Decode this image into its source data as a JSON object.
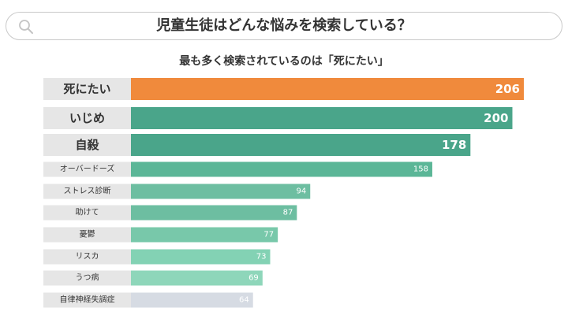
{
  "search": {
    "query": "児童生徒はどんな悩みを検索している？",
    "icon": "search-icon"
  },
  "chart_data": {
    "type": "bar",
    "orientation": "horizontal",
    "title": "最も多く検索されているのは「死にたい」",
    "xlabel": "",
    "ylabel": "",
    "categories": [
      "死にたい",
      "いじめ",
      "自殺",
      "オーバードーズ",
      "ストレス診断",
      "助けて",
      "憂鬱",
      "リスカ",
      "うつ病",
      "自律神経失調症"
    ],
    "values": [
      206,
      200,
      178,
      158,
      94,
      87,
      77,
      73,
      69,
      64
    ],
    "value_labels": [
      "206",
      "200",
      "178",
      "158",
      "94",
      "87",
      "77",
      "73",
      "69",
      "64"
    ],
    "xlim": [
      0,
      206
    ],
    "grid": false,
    "legend": "none",
    "bar_colors": [
      "#f08a3c",
      "#4aa58a",
      "#4aa58a",
      "#5bb697",
      "#6dbea1",
      "#6dbea1",
      "#78c8aa",
      "#83d2b4",
      "#8ed6ba",
      "#d6dbe3"
    ],
    "label_bg": "#e6e6e6",
    "value_label_color": "#ffffff"
  }
}
